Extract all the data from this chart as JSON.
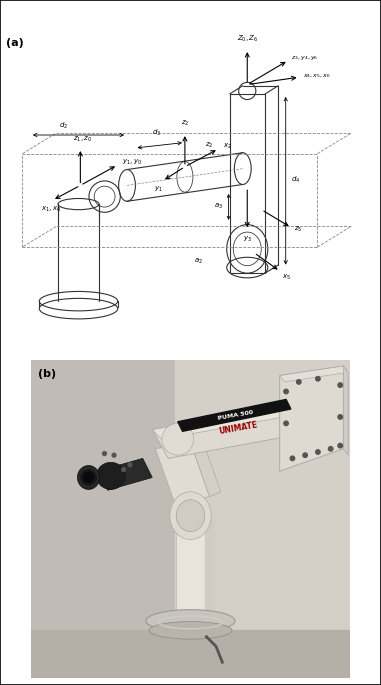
{
  "panel_a_label": "(a)",
  "panel_b_label": "(b)",
  "background_color": "#ffffff",
  "fig_width": 3.81,
  "fig_height": 6.85,
  "dpi": 100,
  "line_color": "#333333",
  "dash_color": "#888888",
  "arrow_color": "#000000",
  "lw": 0.8,
  "wall_left_color": "#c8c4bc",
  "wall_right_color": "#d8d4cc",
  "robot_body_color": "#e4e0d8",
  "robot_shadow_color": "#b0acA4",
  "black_stripe_color": "#111111",
  "wrist_color": "#2a2a2a",
  "pedestal_color": "#dedad2",
  "base_disk_color": "#c8c4bc"
}
